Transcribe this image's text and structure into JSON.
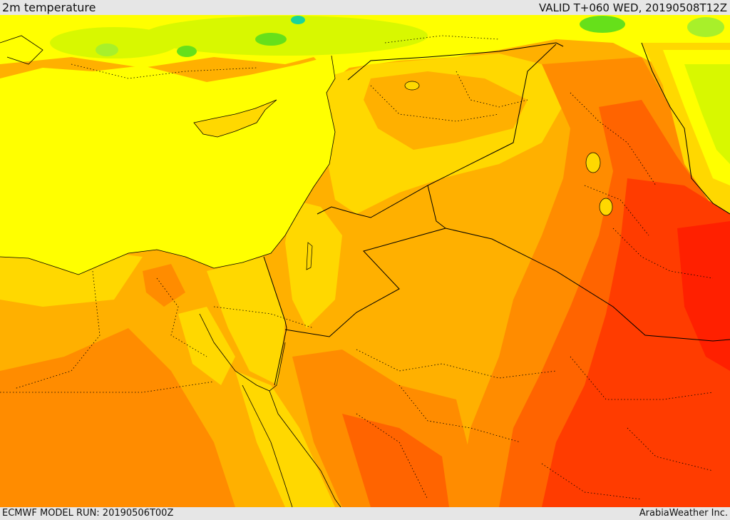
{
  "header": {
    "title": "2m temperature",
    "valid_time": "VALID T+060 WED, 20190508T12Z"
  },
  "footer": {
    "model_run": "ECMWF MODEL RUN: 20190506T00Z",
    "credit": "ArabiaWeather Inc."
  },
  "map": {
    "field": "2m temperature",
    "palette": {
      "green": "#66e01a",
      "light_green": "#a8f02a",
      "cyan": "#19d49a",
      "yellow_green": "#d8f800",
      "yellow": "#ffff00",
      "gold": "#ffd800",
      "amber": "#ffb000",
      "orange": "#ff8c00",
      "dark_orange": "#ff6400",
      "red_orange": "#ff3c00",
      "red": "#ff2000"
    },
    "border_color": "#000000"
  }
}
